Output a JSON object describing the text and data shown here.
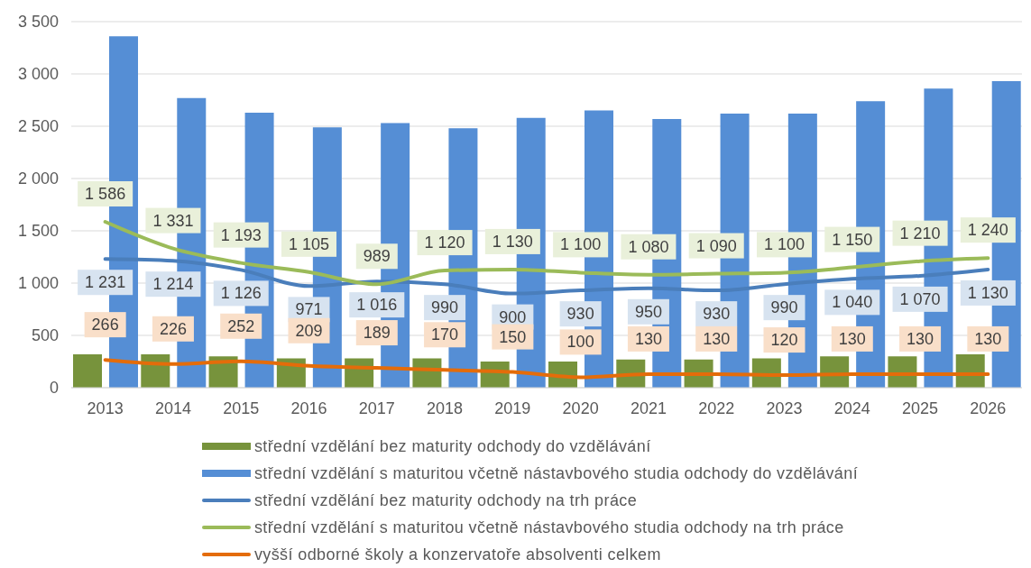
{
  "chart_data": {
    "type": "bar",
    "categories": [
      "2013",
      "2014",
      "2015",
      "2016",
      "2017",
      "2018",
      "2019",
      "2020",
      "2021",
      "2022",
      "2023",
      "2024",
      "2025",
      "2026"
    ],
    "series": [
      {
        "name": "střední vzdělání bez maturity odchody do vzdělávání",
        "color": "#77933c",
        "values": [
          320,
          320,
          300,
          280,
          280,
          280,
          250,
          250,
          270,
          270,
          280,
          300,
          300,
          320
        ]
      },
      {
        "name": "střední vzdělání s maturitou včetně nástavbového studia odchody do vzdělávání",
        "color": "#558ed5",
        "values": [
          3360,
          2770,
          2630,
          2490,
          2530,
          2480,
          2580,
          2650,
          2570,
          2620,
          2620,
          2740,
          2860,
          2930
        ]
      },
      {
        "name": "střední vzdělání bez maturity odchody na trh práce",
        "type": "line",
        "color": "#4a7ebb",
        "values": [
          1231,
          1214,
          1126,
          971,
          1016,
          990,
          900,
          930,
          950,
          930,
          990,
          1040,
          1070,
          1130
        ],
        "value_labels": [
          "1 231",
          "1 214",
          "1 126",
          "971",
          "1 016",
          "990",
          "900",
          "930",
          "950",
          "930",
          "990",
          "1 040",
          "1 070",
          "1 130"
        ]
      },
      {
        "name": "střední vzdělání s maturitou včetně nástavbového studia odchody na trh práce",
        "type": "line",
        "color": "#9bbb59",
        "values": [
          1586,
          1331,
          1193,
          1105,
          989,
          1120,
          1130,
          1100,
          1080,
          1090,
          1100,
          1150,
          1210,
          1240
        ],
        "value_labels": [
          "1 586",
          "1 331",
          "1 193",
          "1 105",
          "989",
          "1 120",
          "1 130",
          "1 100",
          "1 080",
          "1 090",
          "1 100",
          "1 150",
          "1 210",
          "1 240"
        ]
      },
      {
        "name": "vyšší odborné školy a konzervatoře absolventi celkem",
        "type": "line",
        "color": "#e46c0a",
        "values": [
          266,
          226,
          252,
          209,
          189,
          170,
          150,
          100,
          130,
          130,
          120,
          130,
          130,
          130
        ],
        "value_labels": [
          "266",
          "226",
          "252",
          "209",
          "189",
          "170",
          "150",
          "100",
          "130",
          "130",
          "120",
          "130",
          "130",
          "130"
        ]
      }
    ],
    "ylim": [
      0,
      3500
    ],
    "yticks": [
      0,
      500,
      {
        "value": 1000,
        "label": "1 000"
      },
      {
        "value": 1500,
        "label": "1 500"
      },
      {
        "value": 2000,
        "label": "2 000"
      },
      {
        "value": 2500,
        "label": "2 500"
      },
      {
        "value": 3000,
        "label": "3 000"
      },
      {
        "value": 3500,
        "label": "3 500"
      }
    ],
    "grid": "y",
    "legend": "bottom",
    "marker": "none"
  }
}
